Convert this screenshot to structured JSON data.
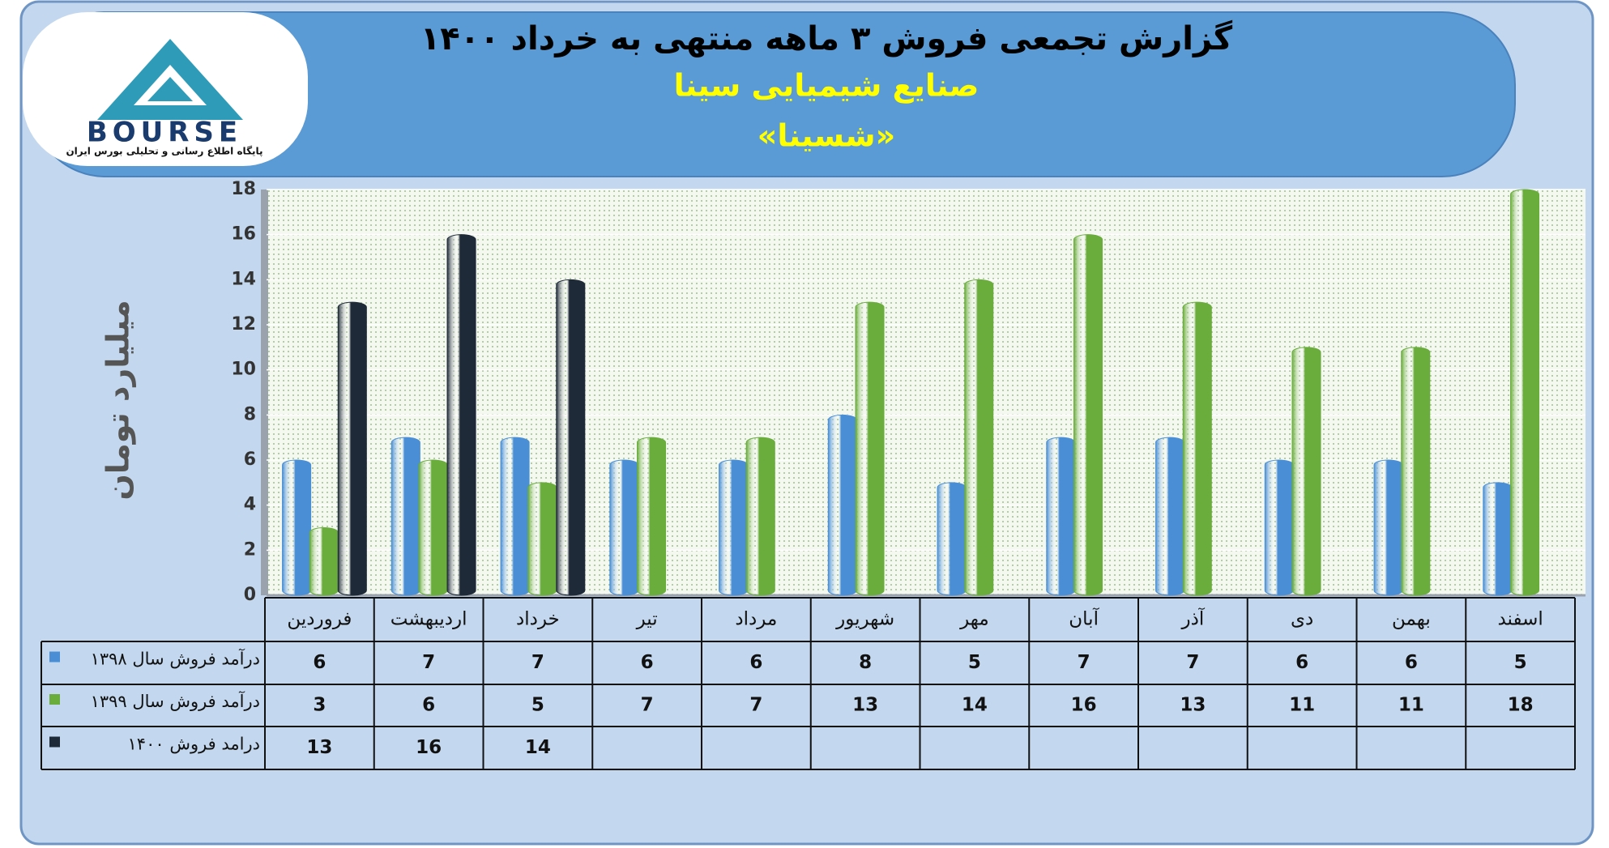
{
  "logo": {
    "text": "BOURSE",
    "tagline": "پایگاه اطلاع رسانی و تحلیلی بورس ایران"
  },
  "chart_data": {
    "type": "bar",
    "title": "گزارش تجمعی فروش ۳ ماهه منتهی به خرداد ۱۴۰۰",
    "subtitle": "صنایع شیمیایی سینا",
    "subtitle2": "«شسینا»",
    "y_label": "میلیارد تومان",
    "categories": [
      "فروردین",
      "اردیبهشت",
      "خرداد",
      "تیر",
      "مرداد",
      "شهریور",
      "مهر",
      "آبان",
      "آذر",
      "دی",
      "بهمن",
      "اسفند"
    ],
    "series": [
      {
        "name": "درآمد فروش سال ۱۳۹۸",
        "color": "#4a8fd6",
        "values": [
          6,
          7,
          7,
          6,
          6,
          8,
          5,
          7,
          7,
          6,
          6,
          5
        ]
      },
      {
        "name": "درآمد فروش سال ۱۳۹۹",
        "color": "#6aad3c",
        "values": [
          3,
          6,
          5,
          7,
          7,
          13,
          14,
          16,
          13,
          11,
          11,
          18
        ]
      },
      {
        "name": "درامد فروش ۱۴۰۰",
        "color": "#1f2a38",
        "values": [
          13,
          16,
          14,
          null,
          null,
          null,
          null,
          null,
          null,
          null,
          null,
          null
        ]
      }
    ],
    "ylim": [
      0,
      18
    ],
    "yticks": [
      0,
      2,
      4,
      6,
      8,
      10,
      12,
      14,
      16,
      18
    ],
    "grid": true
  }
}
